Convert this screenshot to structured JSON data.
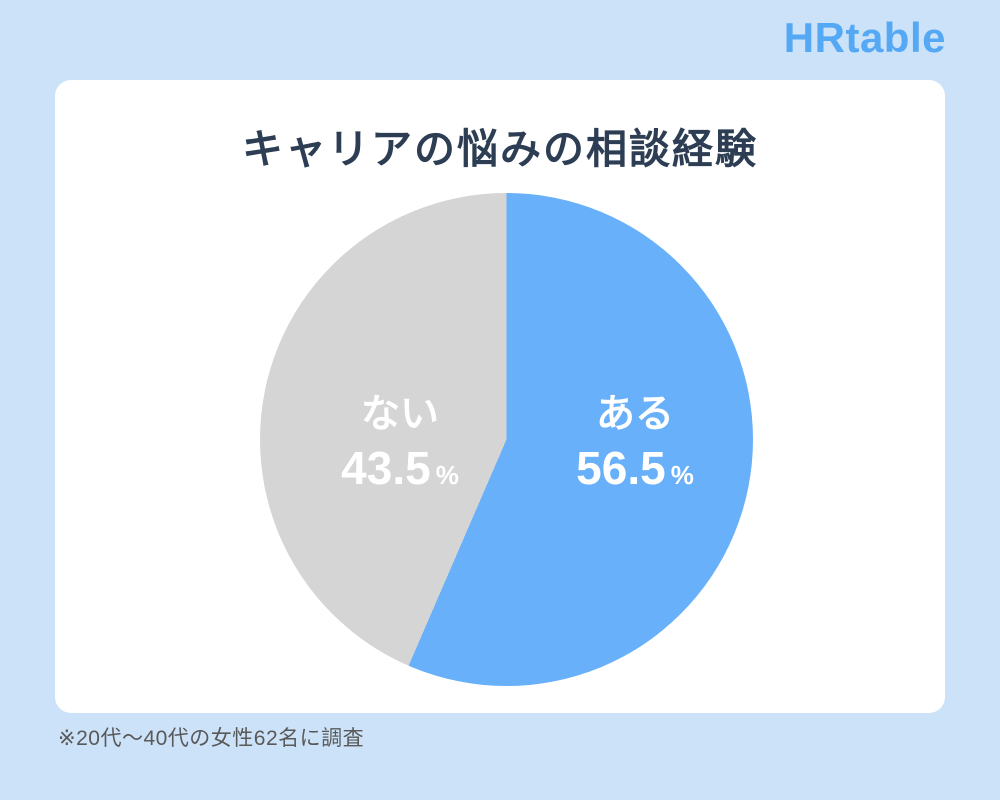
{
  "page": {
    "brand": "HRtable",
    "note": "※20代〜40代の女性62名に調査"
  },
  "chart_data": {
    "type": "pie",
    "title": "キャリアの悩みの相談経験",
    "start_angle_deg": 0,
    "direction": "clockwise",
    "slices": [
      {
        "label": "ある",
        "value": 56.5,
        "value_label": "56.5",
        "unit": "%",
        "color": "#68b0f9"
      },
      {
        "label": "ない",
        "value": 43.5,
        "value_label": "43.5",
        "unit": "%",
        "color": "#d5d5d5"
      }
    ],
    "note": "※20代〜40代の女性62名に調査",
    "colors": {
      "background": "#cce2f8",
      "card": "#ffffff",
      "title_text": "#2d3e54",
      "brand_text": "#55a8f3",
      "note_text": "#595959",
      "label_text": "#ffffff"
    }
  }
}
